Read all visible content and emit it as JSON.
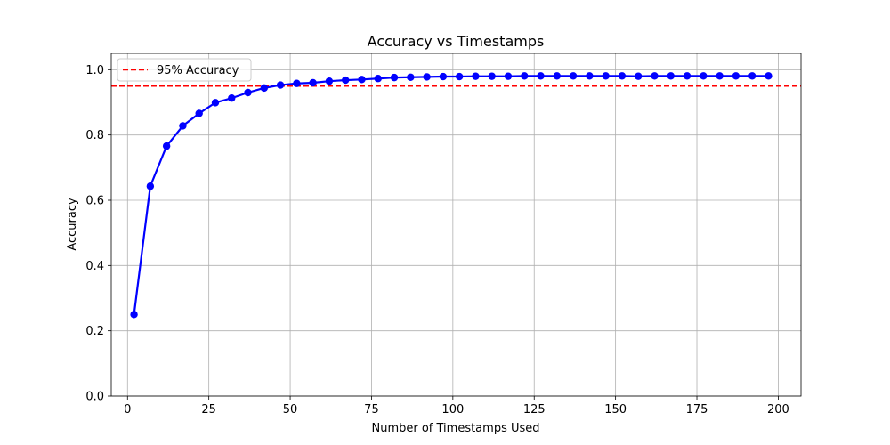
{
  "chart_data": {
    "type": "line",
    "title": "Accuracy vs Timestamps",
    "xlabel": "Number of Timestamps Used",
    "ylabel": "Accuracy",
    "xlim": [
      -5,
      207
    ],
    "ylim": [
      0.0,
      1.05
    ],
    "xticks": [
      0,
      25,
      50,
      75,
      100,
      125,
      150,
      175,
      200
    ],
    "yticks": [
      0.0,
      0.2,
      0.4,
      0.6,
      0.8,
      1.0
    ],
    "xtick_labels": [
      "0",
      "25",
      "50",
      "75",
      "100",
      "125",
      "150",
      "175",
      "200"
    ],
    "ytick_labels": [
      "0.0",
      "0.2",
      "0.4",
      "0.6",
      "0.8",
      "1.0"
    ],
    "grid": true,
    "legend_position": "top-left",
    "series": [
      {
        "x": [
          2,
          7,
          12,
          17,
          22,
          27,
          32,
          37,
          42,
          47,
          52,
          57,
          62,
          67,
          72,
          77,
          82,
          87,
          92,
          97,
          102,
          107,
          112,
          117,
          122,
          127,
          132,
          137,
          142,
          147,
          152,
          157,
          162,
          167,
          172,
          177,
          182,
          187,
          192,
          197
        ],
        "y": [
          0.25,
          0.643,
          0.766,
          0.828,
          0.866,
          0.899,
          0.913,
          0.93,
          0.944,
          0.953,
          0.958,
          0.96,
          0.965,
          0.968,
          0.97,
          0.973,
          0.976,
          0.977,
          0.978,
          0.979,
          0.979,
          0.98,
          0.98,
          0.98,
          0.981,
          0.981,
          0.981,
          0.981,
          0.981,
          0.981,
          0.981,
          0.98,
          0.981,
          0.981,
          0.981,
          0.981,
          0.981,
          0.981,
          0.981,
          0.981
        ],
        "color": "#0000ff"
      }
    ],
    "reference_lines": [
      {
        "name": "95% Accuracy",
        "y": 0.95,
        "color": "#ff0000",
        "style": "dashed"
      }
    ],
    "legend": [
      {
        "label": "95% Accuracy",
        "color": "#ff0000",
        "style": "dashed"
      }
    ]
  }
}
